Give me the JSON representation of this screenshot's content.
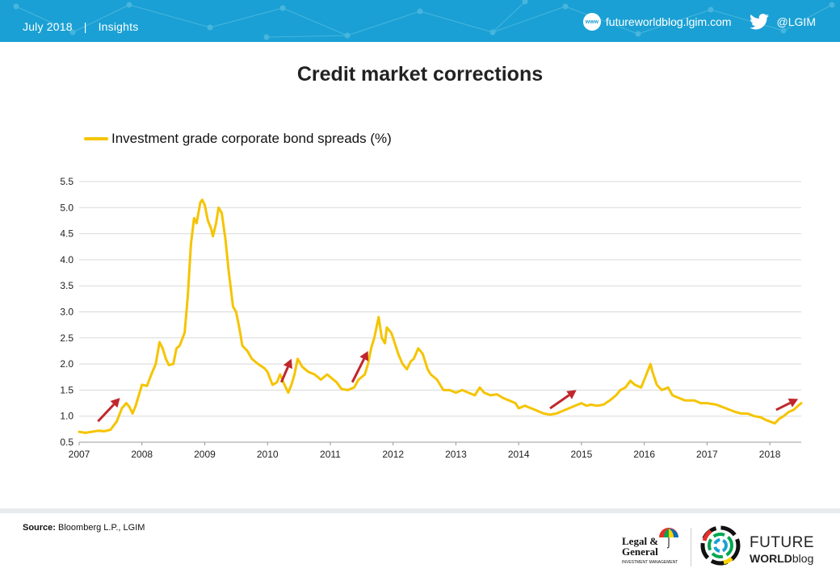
{
  "header": {
    "date": "July 2018",
    "separator": "|",
    "section": "Insights",
    "www_badge": "www",
    "website": "futureworldblog.lgim.com",
    "twitter_handle": "@LGIM",
    "icons": {
      "web": "globe-www-icon",
      "twitter": "twitter-bird-icon"
    },
    "colors": {
      "background": "#1aa0d4",
      "text": "#ffffff"
    }
  },
  "chart_data": {
    "type": "line",
    "title": "Credit market corrections",
    "legend_position": "top-left",
    "grid": true,
    "xlabel": "",
    "ylabel": "",
    "xlim": [
      2007.0,
      2018.5
    ],
    "ylim": [
      0.5,
      5.5
    ],
    "x_ticks": [
      "2007",
      "2008",
      "2009",
      "2010",
      "2011",
      "2012",
      "2013",
      "2014",
      "2015",
      "2016",
      "2017",
      "2018"
    ],
    "y_ticks": [
      "0.5",
      "1.0",
      "1.5",
      "2.0",
      "2.5",
      "3.0",
      "3.5",
      "4.0",
      "4.5",
      "5.0",
      "5.5"
    ],
    "series": [
      {
        "name": "Investment grade corporate bond spreads (%)",
        "color": "#f5c400",
        "points": [
          [
            2007.0,
            0.7
          ],
          [
            2007.1,
            0.68
          ],
          [
            2007.2,
            0.7
          ],
          [
            2007.3,
            0.72
          ],
          [
            2007.4,
            0.71
          ],
          [
            2007.5,
            0.74
          ],
          [
            2007.6,
            0.9
          ],
          [
            2007.68,
            1.15
          ],
          [
            2007.75,
            1.25
          ],
          [
            2007.8,
            1.18
          ],
          [
            2007.85,
            1.05
          ],
          [
            2007.9,
            1.2
          ],
          [
            2008.0,
            1.6
          ],
          [
            2008.08,
            1.58
          ],
          [
            2008.15,
            1.8
          ],
          [
            2008.22,
            2.0
          ],
          [
            2008.28,
            2.42
          ],
          [
            2008.33,
            2.3
          ],
          [
            2008.38,
            2.1
          ],
          [
            2008.43,
            1.98
          ],
          [
            2008.5,
            2.0
          ],
          [
            2008.55,
            2.3
          ],
          [
            2008.6,
            2.35
          ],
          [
            2008.68,
            2.6
          ],
          [
            2008.73,
            3.3
          ],
          [
            2008.78,
            4.3
          ],
          [
            2008.83,
            4.8
          ],
          [
            2008.87,
            4.7
          ],
          [
            2008.93,
            5.1
          ],
          [
            2008.96,
            5.15
          ],
          [
            2009.0,
            5.05
          ],
          [
            2009.05,
            4.75
          ],
          [
            2009.1,
            4.6
          ],
          [
            2009.13,
            4.45
          ],
          [
            2009.18,
            4.7
          ],
          [
            2009.22,
            5.0
          ],
          [
            2009.27,
            4.9
          ],
          [
            2009.33,
            4.4
          ],
          [
            2009.38,
            3.8
          ],
          [
            2009.45,
            3.1
          ],
          [
            2009.5,
            3.0
          ],
          [
            2009.55,
            2.7
          ],
          [
            2009.6,
            2.35
          ],
          [
            2009.68,
            2.25
          ],
          [
            2009.75,
            2.1
          ],
          [
            2009.85,
            2.0
          ],
          [
            2009.95,
            1.92
          ],
          [
            2010.0,
            1.85
          ],
          [
            2010.08,
            1.6
          ],
          [
            2010.15,
            1.65
          ],
          [
            2010.2,
            1.8
          ],
          [
            2010.27,
            1.6
          ],
          [
            2010.33,
            1.45
          ],
          [
            2010.38,
            1.6
          ],
          [
            2010.43,
            1.8
          ],
          [
            2010.48,
            2.1
          ],
          [
            2010.55,
            1.95
          ],
          [
            2010.65,
            1.85
          ],
          [
            2010.75,
            1.8
          ],
          [
            2010.85,
            1.7
          ],
          [
            2010.95,
            1.8
          ],
          [
            2011.0,
            1.75
          ],
          [
            2011.1,
            1.65
          ],
          [
            2011.18,
            1.52
          ],
          [
            2011.28,
            1.5
          ],
          [
            2011.38,
            1.55
          ],
          [
            2011.45,
            1.7
          ],
          [
            2011.55,
            1.8
          ],
          [
            2011.6,
            2.0
          ],
          [
            2011.65,
            2.3
          ],
          [
            2011.7,
            2.5
          ],
          [
            2011.77,
            2.9
          ],
          [
            2011.82,
            2.5
          ],
          [
            2011.87,
            2.4
          ],
          [
            2011.9,
            2.7
          ],
          [
            2011.97,
            2.6
          ],
          [
            2012.0,
            2.5
          ],
          [
            2012.08,
            2.2
          ],
          [
            2012.15,
            2.0
          ],
          [
            2012.22,
            1.9
          ],
          [
            2012.28,
            2.05
          ],
          [
            2012.33,
            2.1
          ],
          [
            2012.4,
            2.3
          ],
          [
            2012.47,
            2.2
          ],
          [
            2012.55,
            1.9
          ],
          [
            2012.6,
            1.8
          ],
          [
            2012.7,
            1.7
          ],
          [
            2012.8,
            1.5
          ],
          [
            2012.9,
            1.5
          ],
          [
            2013.0,
            1.45
          ],
          [
            2013.1,
            1.5
          ],
          [
            2013.2,
            1.45
          ],
          [
            2013.3,
            1.4
          ],
          [
            2013.38,
            1.55
          ],
          [
            2013.45,
            1.45
          ],
          [
            2013.55,
            1.4
          ],
          [
            2013.65,
            1.42
          ],
          [
            2013.75,
            1.35
          ],
          [
            2013.85,
            1.3
          ],
          [
            2013.95,
            1.25
          ],
          [
            2014.0,
            1.15
          ],
          [
            2014.1,
            1.2
          ],
          [
            2014.2,
            1.15
          ],
          [
            2014.3,
            1.1
          ],
          [
            2014.4,
            1.05
          ],
          [
            2014.5,
            1.03
          ],
          [
            2014.6,
            1.05
          ],
          [
            2014.7,
            1.1
          ],
          [
            2014.8,
            1.15
          ],
          [
            2014.9,
            1.2
          ],
          [
            2015.0,
            1.25
          ],
          [
            2015.08,
            1.2
          ],
          [
            2015.15,
            1.22
          ],
          [
            2015.25,
            1.2
          ],
          [
            2015.35,
            1.22
          ],
          [
            2015.45,
            1.3
          ],
          [
            2015.55,
            1.4
          ],
          [
            2015.62,
            1.5
          ],
          [
            2015.7,
            1.55
          ],
          [
            2015.78,
            1.68
          ],
          [
            2015.85,
            1.6
          ],
          [
            2015.95,
            1.55
          ],
          [
            2016.0,
            1.7
          ],
          [
            2016.05,
            1.85
          ],
          [
            2016.1,
            2.0
          ],
          [
            2016.13,
            1.85
          ],
          [
            2016.2,
            1.6
          ],
          [
            2016.28,
            1.5
          ],
          [
            2016.38,
            1.55
          ],
          [
            2016.45,
            1.4
          ],
          [
            2016.55,
            1.35
          ],
          [
            2016.65,
            1.3
          ],
          [
            2016.8,
            1.3
          ],
          [
            2016.9,
            1.25
          ],
          [
            2017.0,
            1.25
          ],
          [
            2017.15,
            1.22
          ],
          [
            2017.3,
            1.15
          ],
          [
            2017.45,
            1.08
          ],
          [
            2017.55,
            1.05
          ],
          [
            2017.65,
            1.05
          ],
          [
            2017.75,
            1.0
          ],
          [
            2017.85,
            0.98
          ],
          [
            2017.95,
            0.92
          ],
          [
            2018.0,
            0.9
          ],
          [
            2018.08,
            0.86
          ],
          [
            2018.15,
            0.95
          ],
          [
            2018.22,
            1.0
          ],
          [
            2018.3,
            1.08
          ],
          [
            2018.38,
            1.12
          ],
          [
            2018.45,
            1.2
          ],
          [
            2018.5,
            1.25
          ]
        ]
      }
    ],
    "annotations": [
      {
        "type": "arrow",
        "from": [
          2007.3,
          0.9
        ],
        "to": [
          2007.65,
          1.35
        ],
        "color": "#c0272d"
      },
      {
        "type": "arrow",
        "from": [
          2010.22,
          1.65
        ],
        "to": [
          2010.38,
          2.1
        ],
        "color": "#c0272d"
      },
      {
        "type": "arrow",
        "from": [
          2011.35,
          1.65
        ],
        "to": [
          2011.6,
          2.25
        ],
        "color": "#c0272d"
      },
      {
        "type": "arrow",
        "from": [
          2014.5,
          1.15
        ],
        "to": [
          2014.92,
          1.5
        ],
        "color": "#c0272d"
      },
      {
        "type": "arrow",
        "from": [
          2018.1,
          1.12
        ],
        "to": [
          2018.45,
          1.33
        ],
        "color": "#c0272d"
      }
    ]
  },
  "footer": {
    "source_label": "Source:",
    "source_text": "Bloomberg L.P., LGIM",
    "lg_logo_text_line1": "Legal &",
    "lg_logo_text_line2": "General",
    "lg_logo_subtext": "INVESTMENT MANAGEMENT",
    "fw_logo_line1": "FUTURE",
    "fw_logo_line2_bold": "WORLD",
    "fw_logo_line2_light": "blog"
  }
}
